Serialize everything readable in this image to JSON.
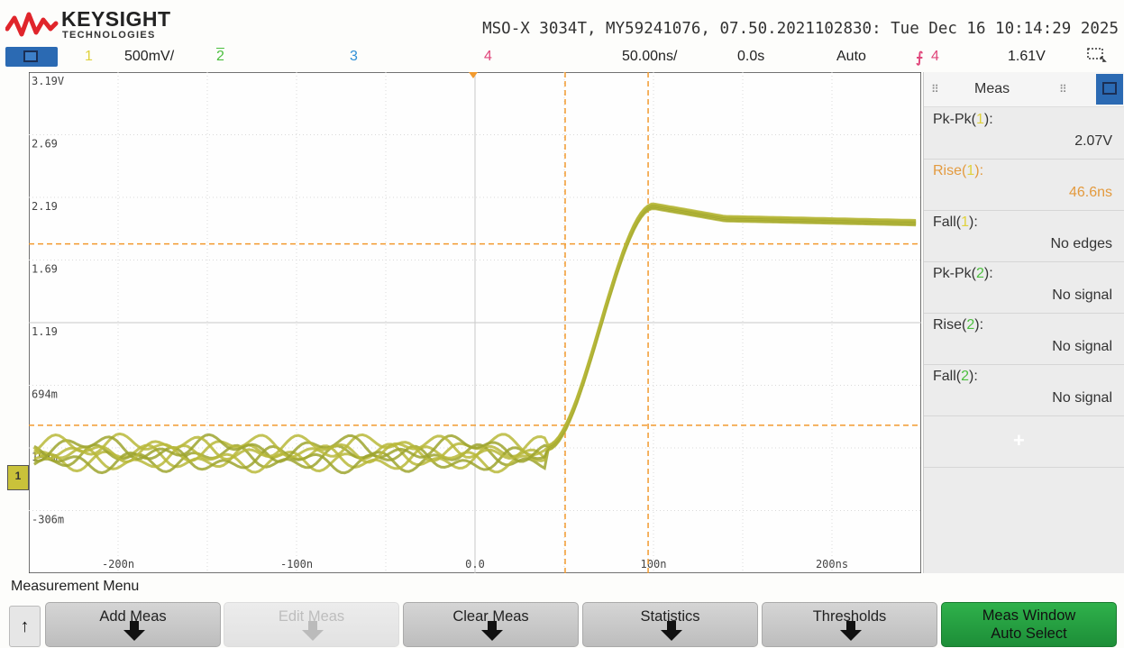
{
  "header": {
    "brand": "KEYSIGHT",
    "brand_sub": "TECHNOLOGIES",
    "instrument_id": "MSO-X 3034T, MY59241076, 07.50.2021102830: Tue Dec 16 10:14:29 2025"
  },
  "channel_bar": {
    "ch1_num": "1",
    "ch1_scale": "500mV/",
    "ch2_num": "2",
    "ch3_num": "3",
    "ch4_num": "4",
    "timebase": "50.00ns/",
    "delay": "0.0s",
    "trigger_mode": "Auto",
    "trigger_source": "4",
    "trigger_level": "1.61V",
    "colors": {
      "ch1": "#e0d23b",
      "ch2": "#4bbf3d",
      "ch3": "#2e8fd6",
      "ch4": "#e0457a"
    }
  },
  "graticule": {
    "y_labels": [
      "3.19V",
      "2.69",
      "2.19",
      "1.69",
      "1.19",
      "694m",
      "194m",
      "-306m"
    ],
    "x_labels": [
      "-200n",
      "-100n",
      "0.0",
      "100n",
      "200ns"
    ],
    "ch1_marker": "1"
  },
  "meas_panel": {
    "title": "Meas",
    "items": [
      {
        "name": "Pk-Pk",
        "ch": "1",
        "value": "2.07V"
      },
      {
        "name": "Rise",
        "ch": "1",
        "value": "46.6ns"
      },
      {
        "name": "Fall",
        "ch": "1",
        "value": "No edges"
      },
      {
        "name": "Pk-Pk",
        "ch": "2",
        "value": "No signal"
      },
      {
        "name": "Rise",
        "ch": "2",
        "value": "No signal"
      },
      {
        "name": "Fall",
        "ch": "2",
        "value": "No signal"
      }
    ],
    "add_symbol": "+"
  },
  "softkeys": {
    "menu_label": "Measurement Menu",
    "back_symbol": "↑",
    "buttons": [
      {
        "label": "Add Meas"
      },
      {
        "label": "Edit Meas"
      },
      {
        "label": "Clear Meas"
      },
      {
        "label": "Statistics"
      },
      {
        "label": "Thresholds"
      },
      {
        "label": "Meas Window",
        "sub": "Auto Select"
      }
    ]
  },
  "waveform": {
    "trace_color": "#b8b83a",
    "cursor_color": "#f29a2e",
    "baseline_v": 0.19,
    "high_v": 2.0
  }
}
